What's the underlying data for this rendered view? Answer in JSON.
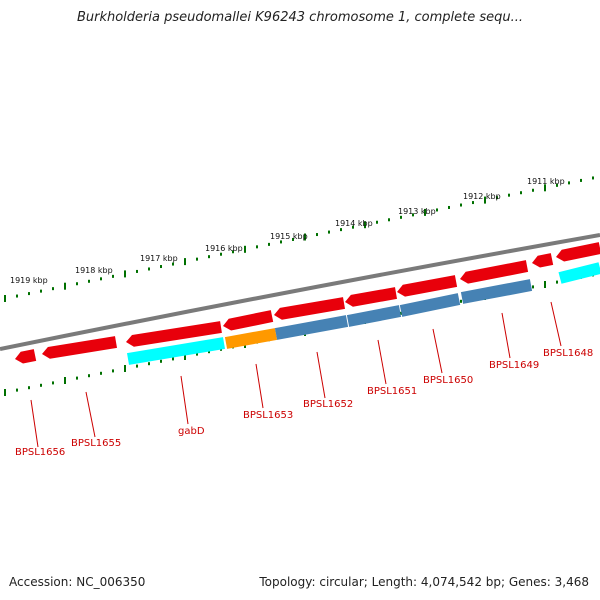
{
  "title": "Burkholderia pseudomallei K96243 chromosome 1, complete sequ...",
  "footer": {
    "accession": "Accession: NC_006350",
    "summary": "Topology: circular; Length: 4,074,542 bp; Genes: 3,468"
  },
  "colors": {
    "backbone": "#7a7a7a",
    "outer_genes": "#e8000b",
    "inner_gene_cyan": "#00ffff",
    "inner_gene_orange": "#ff9900",
    "inner_gene_steelblue": "#4682b4",
    "ticks": "#007000",
    "gene_labels": "#cc0000"
  },
  "scale_labels": [
    "1919 kbp",
    "1918 kbp",
    "1917 kbp",
    "1916 kbp",
    "1915 kbp",
    "1914 kbp",
    "1913 kbp",
    "1912 kbp",
    "1911 kbp"
  ],
  "gene_labels": [
    "BPSL1656",
    "BPSL1655",
    "gabD",
    "BPSL1653",
    "BPSL1652",
    "BPSL1651",
    "BPSL1650",
    "BPSL1649",
    "BPSL1648"
  ]
}
